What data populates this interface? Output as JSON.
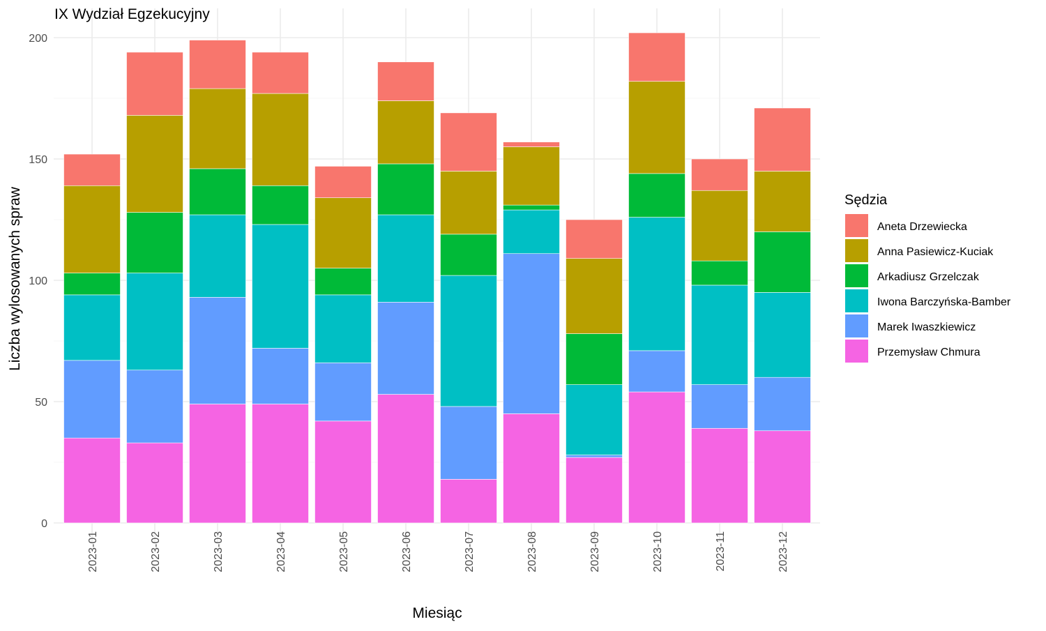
{
  "chart_data": {
    "type": "bar",
    "stacked": true,
    "title": "IX Wydział Egzekucyjny",
    "xlabel": "Miesiąc",
    "ylabel": "Liczba wylosowanych spraw",
    "ylim": [
      0,
      210
    ],
    "yticks": [
      0,
      50,
      100,
      150,
      200
    ],
    "grid": true,
    "legend_position": "right",
    "legend_title": "Sędzia",
    "categories": [
      "2023-01",
      "2023-02",
      "2023-03",
      "2023-04",
      "2023-05",
      "2023-06",
      "2023-07",
      "2023-08",
      "2023-09",
      "2023-10",
      "2023-11",
      "2023-12"
    ],
    "series": [
      {
        "name": "Aneta Drzewiecka",
        "color": "#F8766D",
        "values": [
          13,
          26,
          20,
          17,
          13,
          16,
          24,
          2,
          16,
          20,
          13,
          26
        ]
      },
      {
        "name": "Anna Pasiewicz-Kuciak",
        "color": "#B79F00",
        "values": [
          36,
          40,
          33,
          38,
          29,
          26,
          26,
          24,
          31,
          38,
          29,
          25
        ]
      },
      {
        "name": "Arkadiusz Grzelczak",
        "color": "#00BA38",
        "values": [
          9,
          25,
          19,
          16,
          11,
          21,
          17,
          2,
          21,
          18,
          10,
          25
        ]
      },
      {
        "name": "Iwona Barczyńska-Bamber",
        "color": "#00BFC4",
        "values": [
          27,
          40,
          34,
          51,
          28,
          36,
          54,
          18,
          29,
          55,
          41,
          35
        ]
      },
      {
        "name": "Marek Iwaszkiewicz",
        "color": "#619CFF",
        "values": [
          32,
          30,
          44,
          23,
          24,
          38,
          30,
          66,
          1,
          17,
          18,
          22
        ]
      },
      {
        "name": "Przemysław Chmura",
        "color": "#F564E3",
        "values": [
          35,
          33,
          49,
          49,
          42,
          53,
          18,
          45,
          27,
          54,
          39,
          38
        ]
      }
    ]
  }
}
